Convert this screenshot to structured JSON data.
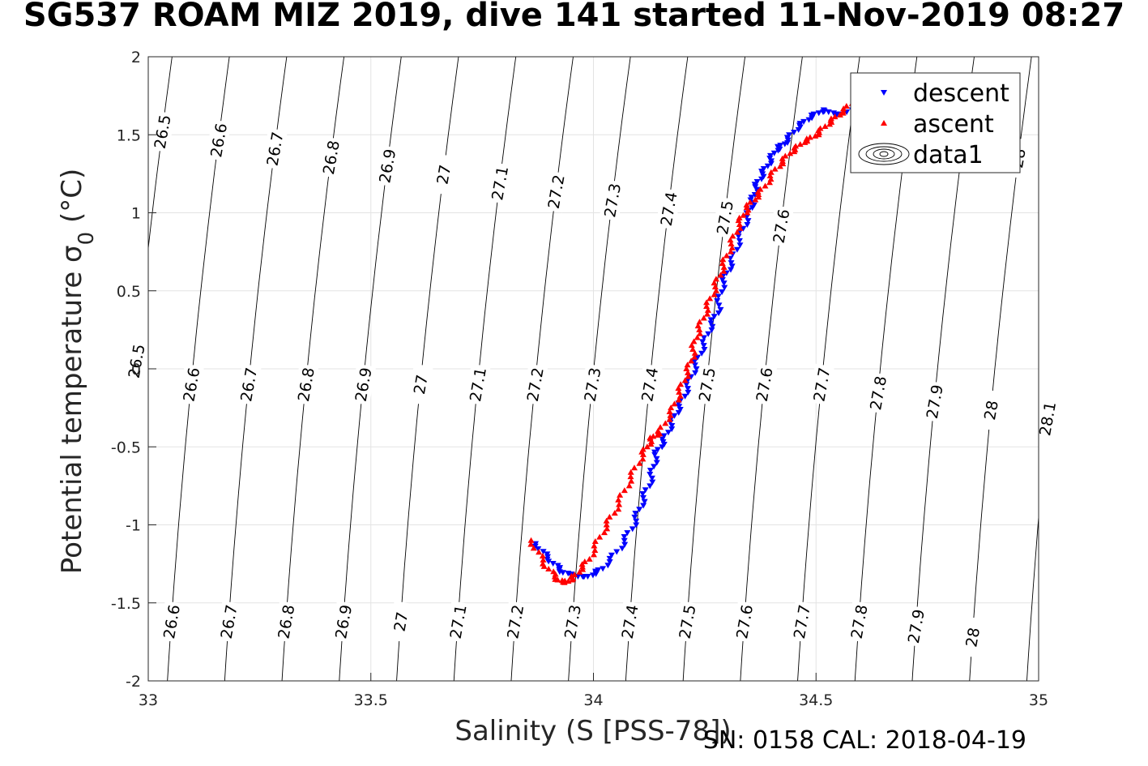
{
  "title": "SG537 ROAM MIZ 2019, dive 141 started 11-Nov-2019 08:27",
  "footer": "SN: 0158  CAL: 2018-04-19",
  "chart_data": {
    "type": "scatter",
    "title": "SG537 ROAM MIZ 2019, dive 141 started 11-Nov-2019 08:27",
    "xlabel": "Salinity (S [PSS-78])",
    "ylabel": "Potential temperature σ_0 (°C)",
    "xlim": [
      33,
      35
    ],
    "ylim": [
      -2,
      2
    ],
    "x_ticks": [
      33,
      33.5,
      34,
      34.5,
      35
    ],
    "y_ticks": [
      -2,
      -1.5,
      -1,
      -0.5,
      0,
      0.5,
      1,
      1.5,
      2
    ],
    "grid": true,
    "legend": {
      "placement": "top-right",
      "entries": [
        "descent",
        "ascent",
        "data1"
      ]
    },
    "series": [
      {
        "name": "descent",
        "marker": "triangle-down",
        "color": "#0000ff",
        "x": [
          33.87,
          33.9,
          33.93,
          33.96,
          33.99,
          34.02,
          34.06,
          34.09,
          34.11,
          34.13,
          34.14,
          34.16,
          34.18,
          34.2,
          34.22,
          34.24,
          34.26,
          34.28,
          34.29,
          34.31,
          34.33,
          34.35,
          34.36,
          34.37,
          34.39,
          34.41,
          34.43,
          34.46,
          34.49,
          34.52,
          34.55,
          34.6,
          34.65,
          34.7
        ],
        "y": [
          -1.12,
          -1.22,
          -1.3,
          -1.33,
          -1.33,
          -1.28,
          -1.15,
          -1.0,
          -0.85,
          -0.7,
          -0.55,
          -0.45,
          -0.32,
          -0.2,
          -0.05,
          0.1,
          0.25,
          0.38,
          0.55,
          0.68,
          0.85,
          1.0,
          1.1,
          1.2,
          1.3,
          1.4,
          1.45,
          1.55,
          1.62,
          1.66,
          1.62,
          1.7,
          1.72,
          1.72
        ]
      },
      {
        "name": "ascent",
        "marker": "triangle-up",
        "color": "#ff0000",
        "x": [
          33.86,
          33.89,
          33.92,
          33.94,
          33.96,
          33.99,
          34.02,
          34.05,
          34.08,
          34.11,
          34.13,
          34.15,
          34.18,
          34.2,
          34.22,
          34.23,
          34.25,
          34.27,
          34.29,
          34.31,
          34.33,
          34.35,
          34.38,
          34.41,
          34.44,
          34.47,
          34.5,
          34.53,
          34.56,
          34.6,
          34.63
        ],
        "y": [
          -1.1,
          -1.25,
          -1.35,
          -1.37,
          -1.32,
          -1.22,
          -1.05,
          -0.9,
          -0.72,
          -0.55,
          -0.45,
          -0.4,
          -0.25,
          -0.1,
          0.05,
          0.2,
          0.35,
          0.5,
          0.65,
          0.8,
          0.95,
          1.05,
          1.15,
          1.28,
          1.38,
          1.45,
          1.5,
          1.58,
          1.65,
          1.75,
          1.82
        ]
      }
    ],
    "contours": {
      "name": "data1",
      "levels": [
        26.5,
        26.6,
        26.7,
        26.8,
        26.9,
        27,
        27.1,
        27.2,
        27.3,
        27.4,
        27.5,
        27.6,
        27.7,
        27.8,
        27.9,
        28,
        28.1
      ],
      "label_rows": {
        "top": [
          "26.5",
          "26.6",
          "26.7",
          "26.8",
          "26.9",
          "27",
          "27.1",
          "27.2",
          "27.3",
          "27.4",
          "27.5",
          "27.6",
          "28"
        ],
        "middle": [
          "26.5",
          "26.6",
          "26.7",
          "26.8",
          "26.9",
          "27",
          "27.1",
          "27.2",
          "27.3",
          "27.4",
          "27.5",
          "27.6",
          "27.7",
          "27.8",
          "27.9",
          "28",
          "28.1"
        ],
        "bottom": [
          "26.6",
          "26.7",
          "26.8",
          "26.9",
          "27",
          "27.1",
          "27.2",
          "27.3",
          "27.4",
          "27.5",
          "27.6",
          "27.7",
          "27.8",
          "27.9",
          "28"
        ]
      }
    }
  }
}
